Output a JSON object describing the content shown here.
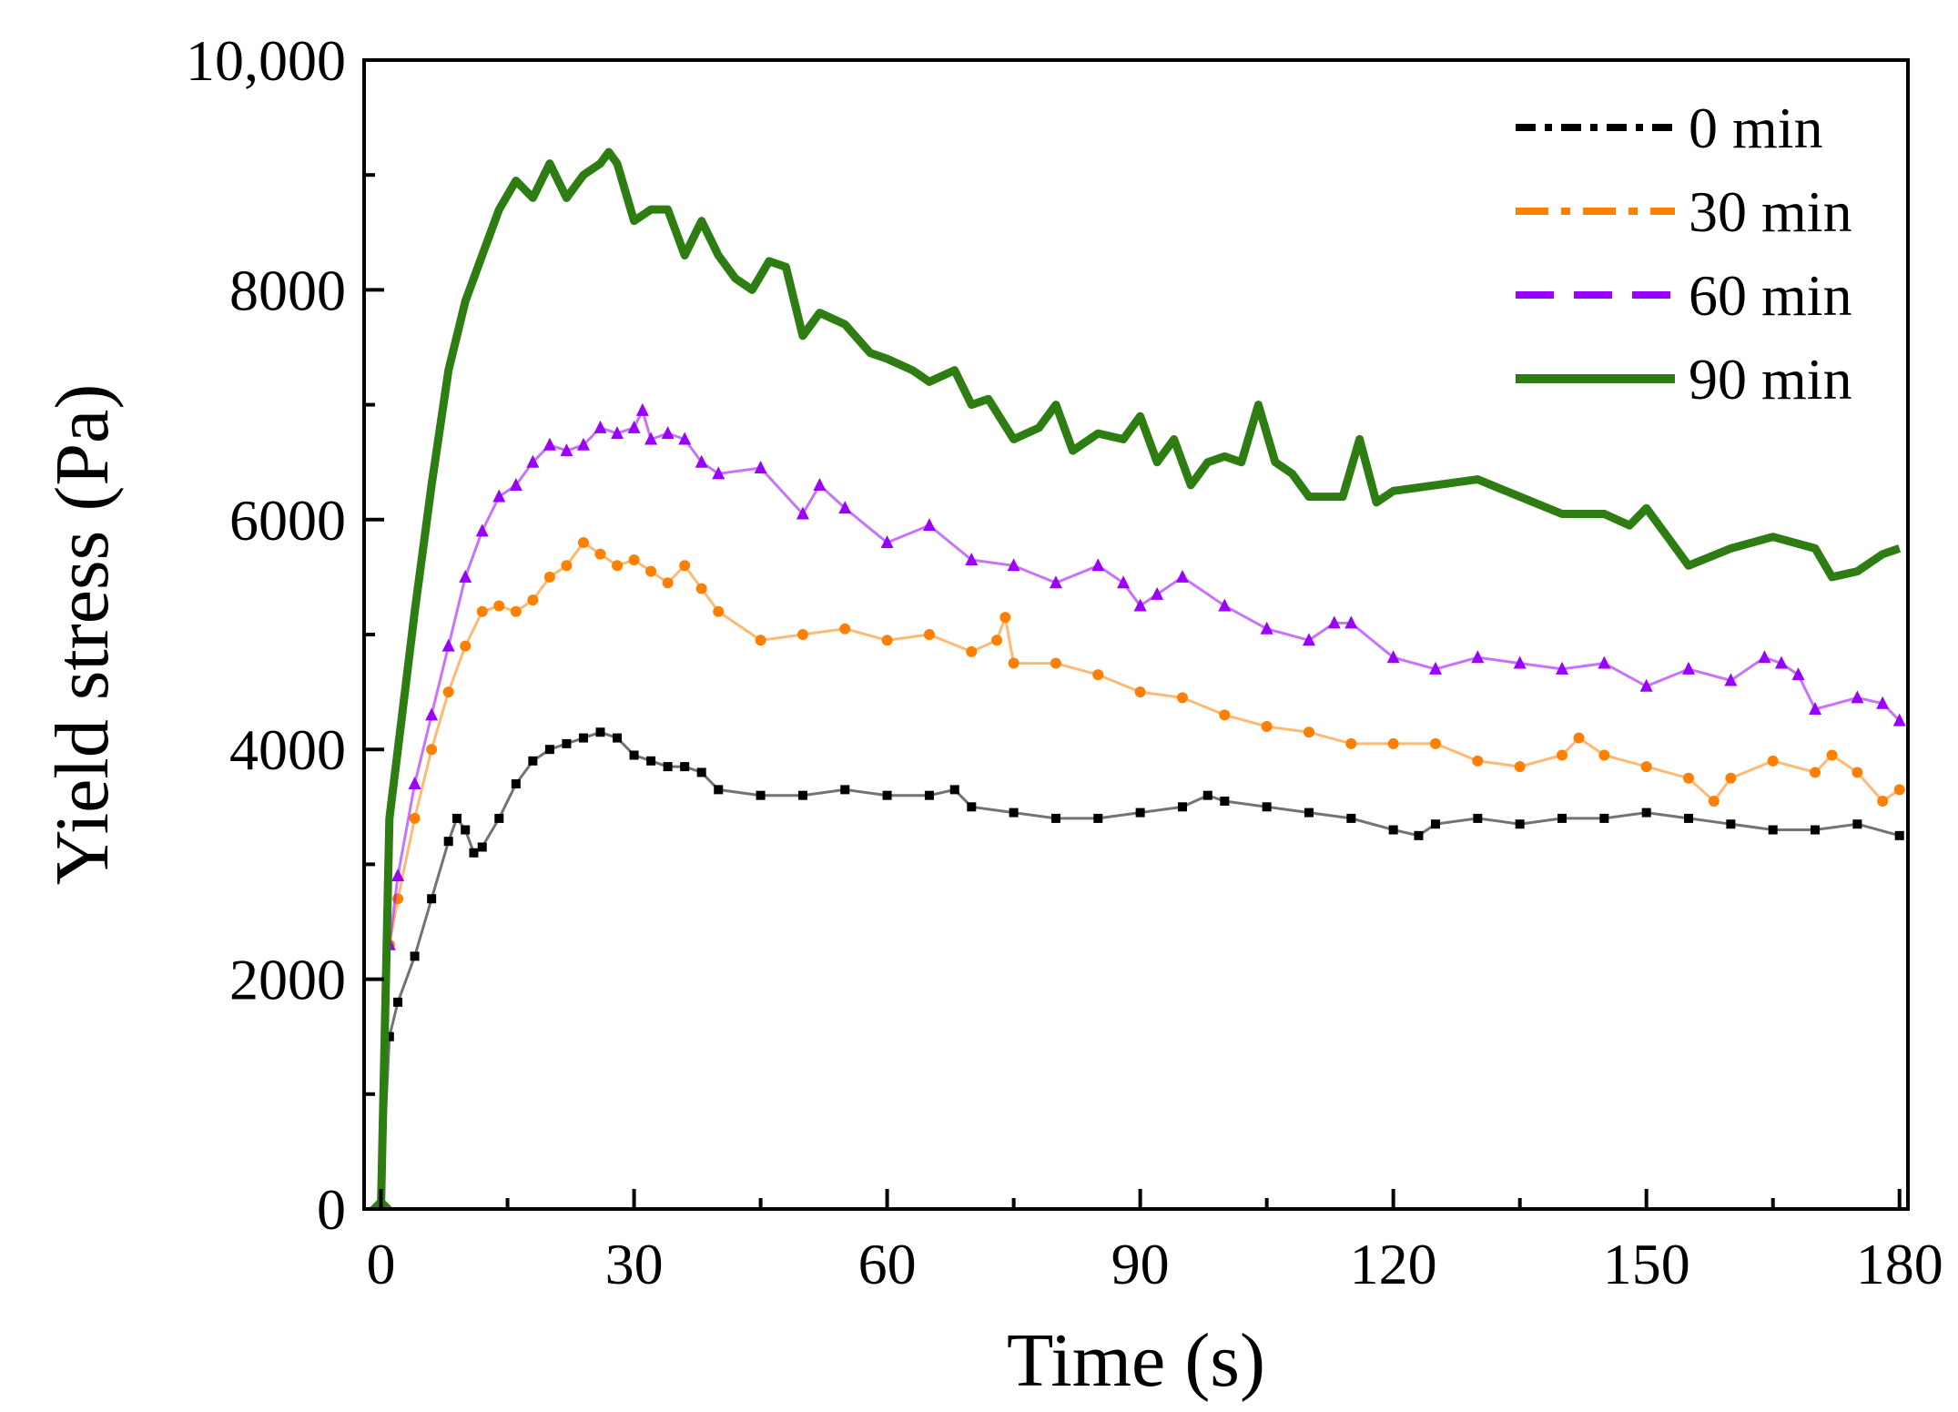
{
  "chart_data": {
    "type": "line",
    "title": "",
    "xlabel": "Time (s)",
    "ylabel": "Yield stress (Pa)",
    "xlim": [
      -2,
      181
    ],
    "ylim": [
      0,
      10000
    ],
    "x_ticks": [
      0,
      30,
      60,
      90,
      120,
      150,
      180
    ],
    "x_tick_labels": [
      "0",
      "30",
      "60",
      "90",
      "120",
      "150",
      "180"
    ],
    "y_ticks": [
      0,
      2000,
      4000,
      6000,
      8000,
      10000
    ],
    "y_tick_labels": [
      "0",
      "2000",
      "4000",
      "6000",
      "8000",
      "10,000"
    ],
    "legend_position": "top-right",
    "series": [
      {
        "name": "0 min",
        "color": "#000000",
        "style": "dash-dot-squares",
        "x": [
          0,
          1,
          2,
          4,
          6,
          8,
          9,
          10,
          11,
          12,
          14,
          16,
          18,
          20,
          22,
          24,
          26,
          28,
          30,
          32,
          34,
          36,
          38,
          40,
          45,
          50,
          55,
          60,
          65,
          68,
          70,
          75,
          80,
          85,
          90,
          95,
          98,
          100,
          105,
          110,
          115,
          120,
          123,
          125,
          130,
          135,
          140,
          145,
          150,
          155,
          160,
          165,
          170,
          175,
          180
        ],
        "values": [
          0,
          1500,
          1800,
          2200,
          2700,
          3200,
          3400,
          3300,
          3100,
          3150,
          3400,
          3700,
          3900,
          4000,
          4050,
          4100,
          4150,
          4100,
          3950,
          3900,
          3850,
          3850,
          3800,
          3650,
          3600,
          3600,
          3650,
          3600,
          3600,
          3650,
          3500,
          3450,
          3400,
          3400,
          3450,
          3500,
          3600,
          3550,
          3500,
          3450,
          3400,
          3300,
          3250,
          3350,
          3400,
          3350,
          3400,
          3400,
          3450,
          3400,
          3350,
          3300,
          3300,
          3350,
          3250
        ]
      },
      {
        "name": "30 min",
        "color": "#ff8000",
        "style": "dash-dot-circles",
        "x": [
          0,
          1,
          2,
          4,
          6,
          8,
          10,
          12,
          14,
          16,
          18,
          20,
          22,
          24,
          26,
          28,
          30,
          32,
          34,
          36,
          38,
          40,
          45,
          50,
          55,
          60,
          65,
          70,
          73,
          74,
          75,
          80,
          85,
          90,
          95,
          100,
          105,
          110,
          115,
          120,
          125,
          130,
          135,
          140,
          142,
          145,
          150,
          155,
          158,
          160,
          165,
          170,
          172,
          175,
          178,
          180
        ],
        "values": [
          0,
          2300,
          2700,
          3400,
          4000,
          4500,
          4900,
          5200,
          5250,
          5200,
          5300,
          5500,
          5600,
          5800,
          5700,
          5600,
          5650,
          5550,
          5450,
          5600,
          5400,
          5200,
          4950,
          5000,
          5050,
          4950,
          5000,
          4850,
          4950,
          5150,
          4750,
          4750,
          4650,
          4500,
          4450,
          4300,
          4200,
          4150,
          4050,
          4050,
          4050,
          3900,
          3850,
          3950,
          4100,
          3950,
          3850,
          3750,
          3550,
          3750,
          3900,
          3800,
          3950,
          3800,
          3550,
          3650
        ]
      },
      {
        "name": "60 min",
        "color": "#9900ff",
        "style": "dash-triangles",
        "x": [
          0,
          1,
          2,
          4,
          6,
          8,
          10,
          12,
          14,
          16,
          18,
          20,
          22,
          24,
          26,
          28,
          30,
          31,
          32,
          34,
          36,
          38,
          40,
          45,
          50,
          52,
          55,
          60,
          65,
          70,
          75,
          80,
          85,
          88,
          90,
          92,
          95,
          100,
          105,
          110,
          113,
          115,
          120,
          125,
          130,
          135,
          140,
          145,
          150,
          155,
          160,
          164,
          166,
          168,
          170,
          175,
          178,
          180
        ],
        "values": [
          0,
          2300,
          2900,
          3700,
          4300,
          4900,
          5500,
          5900,
          6200,
          6300,
          6500,
          6650,
          6600,
          6650,
          6800,
          6750,
          6800,
          6950,
          6700,
          6750,
          6700,
          6500,
          6400,
          6450,
          6050,
          6300,
          6100,
          5800,
          5950,
          5650,
          5600,
          5450,
          5600,
          5450,
          5250,
          5350,
          5500,
          5250,
          5050,
          4950,
          5100,
          5100,
          4800,
          4700,
          4800,
          4750,
          4700,
          4750,
          4550,
          4700,
          4600,
          4800,
          4750,
          4650,
          4350,
          4450,
          4400,
          4250
        ]
      },
      {
        "name": "90 min",
        "color": "#2e7d12",
        "style": "solid",
        "x": [
          0,
          1,
          2,
          4,
          6,
          8,
          10,
          12,
          14,
          16,
          18,
          20,
          22,
          24,
          26,
          27,
          28,
          30,
          32,
          34,
          36,
          38,
          40,
          42,
          44,
          46,
          48,
          50,
          52,
          55,
          58,
          60,
          63,
          65,
          68,
          70,
          72,
          75,
          78,
          80,
          82,
          85,
          88,
          90,
          92,
          94,
          96,
          98,
          100,
          102,
          104,
          106,
          108,
          110,
          114,
          116,
          118,
          120,
          125,
          130,
          135,
          140,
          145,
          148,
          150,
          153,
          155,
          160,
          165,
          170,
          172,
          175,
          178,
          180
        ],
        "values": [
          0,
          3400,
          4000,
          5200,
          6300,
          7300,
          7900,
          8300,
          8700,
          8950,
          8800,
          9100,
          8800,
          9000,
          9100,
          9200,
          9100,
          8600,
          8700,
          8700,
          8300,
          8600,
          8300,
          8100,
          8000,
          8250,
          8200,
          7600,
          7800,
          7700,
          7450,
          7400,
          7300,
          7200,
          7300,
          7000,
          7050,
          6700,
          6800,
          7000,
          6600,
          6750,
          6700,
          6900,
          6500,
          6700,
          6300,
          6500,
          6550,
          6500,
          7000,
          6500,
          6400,
          6200,
          6200,
          6700,
          6150,
          6250,
          6300,
          6350,
          6200,
          6050,
          6050,
          5950,
          6100,
          5800,
          5600,
          5750,
          5850,
          5750,
          5500,
          5550,
          5700,
          5750
        ]
      }
    ]
  }
}
